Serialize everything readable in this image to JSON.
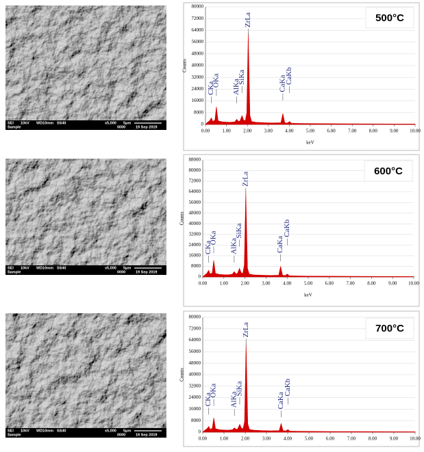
{
  "chart_data": [
    {
      "type": "area",
      "title": "500°C",
      "ylabel": "Counts",
      "xlabel": "keV",
      "color": "#d40000",
      "x": [
        0,
        0.1,
        0.2,
        0.28,
        0.35,
        0.45,
        0.52,
        0.6,
        0.8,
        1.0,
        1.2,
        1.4,
        1.49,
        1.58,
        1.65,
        1.74,
        1.82,
        1.9,
        1.97,
        2.04,
        2.12,
        2.2,
        2.4,
        2.8,
        3.2,
        3.6,
        3.69,
        3.78,
        3.9,
        4.01,
        4.1,
        4.5,
        5,
        6,
        7,
        8,
        9,
        10
      ],
      "values": [
        0,
        1500,
        2500,
        4500,
        2000,
        3000,
        12000,
        2500,
        1800,
        1600,
        1500,
        1800,
        3500,
        2000,
        2500,
        6000,
        3000,
        2500,
        8000,
        62000,
        6000,
        2000,
        1500,
        1200,
        1000,
        1200,
        7500,
        1200,
        900,
        2000,
        800,
        700,
        600,
        500,
        450,
        400,
        350,
        300
      ],
      "annotations": [
        {
          "text": "CKa",
          "x": 0.28,
          "y": 20000
        },
        {
          "text": "OKa",
          "x": 0.52,
          "y": 25000
        },
        {
          "text": "AlKa",
          "x": 1.49,
          "y": 20000
        },
        {
          "text": "SiKa",
          "x": 1.74,
          "y": 27000
        },
        {
          "text": "ZrLa",
          "x": 2.04,
          "y": 66000
        },
        {
          "text": "CaKa",
          "x": 3.69,
          "y": 22000
        },
        {
          "text": "CaKb",
          "x": 4.01,
          "y": 27000
        }
      ],
      "xlim": [
        0,
        10
      ],
      "ylim": [
        0,
        80000
      ],
      "xticks": [
        {
          "value": 0,
          "label": "0.00"
        },
        {
          "value": 1,
          "label": "1.00"
        },
        {
          "value": 2,
          "label": "2.00"
        },
        {
          "value": 3,
          "label": "3.00"
        },
        {
          "value": 4,
          "label": "4.00"
        },
        {
          "value": 5,
          "label": "5.00"
        },
        {
          "value": 6,
          "label": "6.00"
        },
        {
          "value": 7,
          "label": "7.00"
        },
        {
          "value": 8,
          "label": "8.00"
        },
        {
          "value": 9,
          "label": "9.00"
        },
        {
          "value": 10,
          "label": "10.00"
        }
      ],
      "yticks": [
        0,
        8000,
        16000,
        24000,
        32000,
        40000,
        48000,
        56000,
        64000,
        72000,
        80000
      ],
      "grid": true
    },
    {
      "type": "area",
      "title": "600°C",
      "ylabel": "Counts",
      "xlabel": "keV",
      "color": "#d40000",
      "x": [
        0,
        0.1,
        0.2,
        0.28,
        0.35,
        0.45,
        0.52,
        0.6,
        0.8,
        1.0,
        1.2,
        1.4,
        1.49,
        1.58,
        1.65,
        1.74,
        1.82,
        1.9,
        1.97,
        2.04,
        2.12,
        2.2,
        2.4,
        2.8,
        3.2,
        3.6,
        3.69,
        3.78,
        3.9,
        4.01,
        4.1,
        4.5,
        5,
        6,
        7,
        8,
        9,
        10
      ],
      "values": [
        0,
        1500,
        2800,
        5000,
        2200,
        3000,
        12500,
        2600,
        1900,
        1700,
        1600,
        2000,
        4000,
        2200,
        2800,
        6500,
        3200,
        2600,
        9000,
        64000,
        6500,
        2200,
        1600,
        1300,
        1100,
        1300,
        8000,
        1300,
        1000,
        2200,
        900,
        750,
        650,
        550,
        480,
        420,
        380,
        320
      ],
      "annotations": [
        {
          "text": "CKa",
          "x": 0.28,
          "y": 17000
        },
        {
          "text": "OKa",
          "x": 0.52,
          "y": 24000
        },
        {
          "text": "AlKa",
          "x": 1.49,
          "y": 17000
        },
        {
          "text": "SiKa",
          "x": 1.74,
          "y": 29000
        },
        {
          "text": "ZrLa",
          "x": 2.04,
          "y": 68000
        },
        {
          "text": "CaKa",
          "x": 3.69,
          "y": 18000
        },
        {
          "text": "CaKb",
          "x": 4.01,
          "y": 30000
        }
      ],
      "xlim": [
        0,
        10
      ],
      "ylim": [
        0,
        88000
      ],
      "xticks": [
        {
          "value": 0,
          "label": "0.00"
        },
        {
          "value": 1,
          "label": "1.00"
        },
        {
          "value": 2,
          "label": "2.00"
        },
        {
          "value": 3,
          "label": "3.00"
        },
        {
          "value": 4,
          "label": "4.00"
        },
        {
          "value": 5,
          "label": "5.00"
        },
        {
          "value": 6,
          "label": "6.00"
        },
        {
          "value": 7,
          "label": "7.00"
        },
        {
          "value": 8,
          "label": "8.00"
        },
        {
          "value": 9,
          "label": "9.00"
        },
        {
          "value": 10,
          "label": "10.00"
        }
      ],
      "yticks": [
        0,
        8000,
        16000,
        24000,
        32000,
        40000,
        48000,
        56000,
        64000,
        72000,
        80000,
        88000
      ],
      "grid": true
    },
    {
      "type": "area",
      "title": "700°C",
      "ylabel": "Counts",
      "color": "#d40000",
      "x": [
        0,
        0.1,
        0.2,
        0.28,
        0.35,
        0.45,
        0.52,
        0.6,
        0.8,
        1.0,
        1.2,
        1.4,
        1.49,
        1.58,
        1.65,
        1.74,
        1.82,
        1.9,
        1.97,
        2.04,
        2.12,
        2.2,
        2.4,
        2.8,
        3.2,
        3.6,
        3.69,
        3.78,
        3.9,
        4.01,
        4.1,
        4.5,
        5,
        6,
        7,
        8,
        9,
        10
      ],
      "values": [
        0,
        1400,
        2400,
        4000,
        1900,
        2800,
        10000,
        2400,
        1700,
        1500,
        1400,
        1700,
        3000,
        1900,
        2400,
        5500,
        2800,
        2400,
        7500,
        62000,
        5800,
        1900,
        1400,
        1100,
        950,
        1100,
        6000,
        1100,
        850,
        1800,
        750,
        650,
        560,
        480,
        430,
        380,
        340,
        290
      ],
      "annotations": [
        {
          "text": "CKa",
          "x": 0.28,
          "y": 18000
        },
        {
          "text": "OKa",
          "x": 0.52,
          "y": 24000
        },
        {
          "text": "AlKa",
          "x": 1.49,
          "y": 17000
        },
        {
          "text": "SiKa",
          "x": 1.74,
          "y": 25000
        },
        {
          "text": "ZrLa",
          "x": 2.04,
          "y": 66000
        },
        {
          "text": "CaKa",
          "x": 3.69,
          "y": 16000
        },
        {
          "text": "CaKb",
          "x": 4.01,
          "y": 25000
        }
      ],
      "xlim": [
        0,
        10
      ],
      "ylim": [
        0,
        80000
      ],
      "xticks": [
        {
          "value": 0,
          "label": "0.00"
        },
        {
          "value": 1,
          "label": "1.00"
        },
        {
          "value": 2,
          "label": "2.00"
        },
        {
          "value": 3,
          "label": "3.00"
        },
        {
          "value": 4,
          "label": "4.00"
        },
        {
          "value": 5,
          "label": "5.00"
        },
        {
          "value": 6,
          "label": "6.00"
        },
        {
          "value": 7,
          "label": "7.00"
        },
        {
          "value": 8,
          "label": "8.00"
        },
        {
          "value": 9,
          "label": "9.00"
        },
        {
          "value": 10,
          "label": "10.00"
        }
      ],
      "yticks": [
        0,
        8000,
        16000,
        24000,
        32000,
        40000,
        48000,
        56000,
        64000,
        72000,
        80000
      ],
      "grid": true
    }
  ],
  "sem_images": [
    {
      "info": [
        "SEI",
        "10kV",
        "WD10mm",
        "SS40",
        "x5,000",
        "5μm"
      ],
      "info2": [
        "Sample",
        "0000",
        "19 Sep 2019"
      ]
    },
    {
      "info": [
        "SEI",
        "10kV",
        "WD10mm",
        "SS40",
        "x5,000",
        "5μm"
      ],
      "info2": [
        "Sample",
        "0000",
        "19 Sep 2019"
      ]
    },
    {
      "info": [
        "SEI",
        "10kV",
        "WD10mm",
        "SS40",
        "x5,000",
        "5μm"
      ],
      "info2": [
        "Sample",
        "0000",
        "19 Sep 2019"
      ]
    }
  ]
}
